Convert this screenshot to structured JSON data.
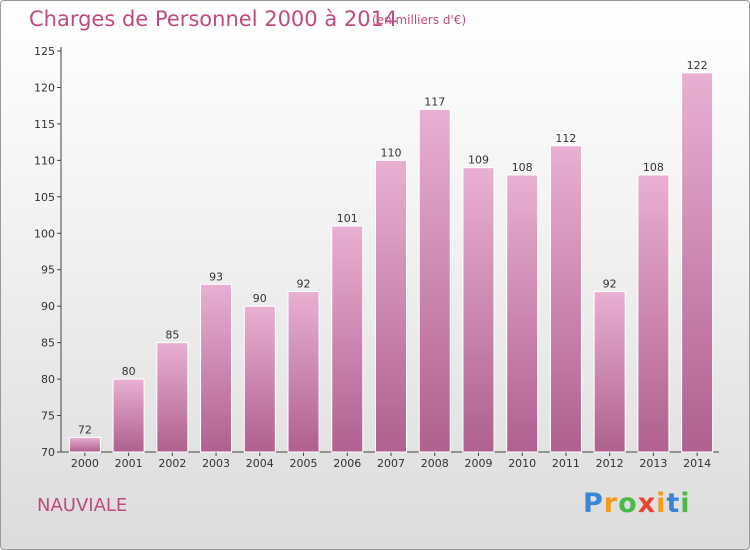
{
  "title": "Charges de Personnel 2000 à 2014",
  "subtitle": "(en milliers d'€)",
  "commune": "NAUVIALE",
  "logo": {
    "letters": [
      "P",
      "r",
      "o",
      "x",
      "i",
      "t",
      "i"
    ],
    "colors": [
      "#3a86d6",
      "#f29a1a",
      "#4ab84a",
      "#e8452c",
      "#f29a1a",
      "#3a86d6",
      "#4ab84a"
    ]
  },
  "colors": {
    "title": "#c04a80",
    "bar_light": "#e8b0d2",
    "bar_dark": "#b0608e"
  },
  "chart_data": {
    "type": "bar",
    "categories": [
      "2000",
      "2001",
      "2002",
      "2003",
      "2004",
      "2005",
      "2006",
      "2007",
      "2008",
      "2009",
      "2010",
      "2011",
      "2012",
      "2013",
      "2014"
    ],
    "values": [
      72,
      80,
      85,
      93,
      90,
      92,
      101,
      110,
      117,
      109,
      108,
      112,
      92,
      108,
      122
    ],
    "ylim": [
      70,
      125
    ],
    "yticks": [
      70,
      75,
      80,
      85,
      90,
      95,
      100,
      105,
      110,
      115,
      120,
      125
    ],
    "grid": false,
    "xlabel": "",
    "ylabel": ""
  }
}
